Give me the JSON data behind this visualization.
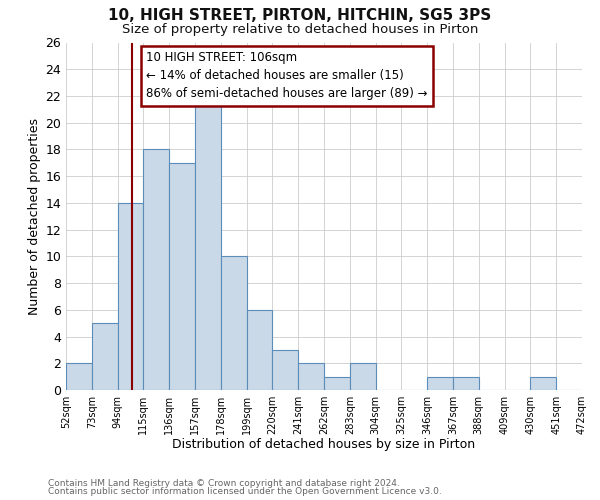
{
  "title": "10, HIGH STREET, PIRTON, HITCHIN, SG5 3PS",
  "subtitle": "Size of property relative to detached houses in Pirton",
  "xlabel": "Distribution of detached houses by size in Pirton",
  "ylabel": "Number of detached properties",
  "bar_edges": [
    52,
    73,
    94,
    115,
    136,
    157,
    178,
    199,
    220,
    241,
    262,
    283,
    304,
    325,
    346,
    367,
    388,
    409,
    430,
    451,
    472
  ],
  "bar_heights": [
    2,
    5,
    14,
    18,
    17,
    22,
    10,
    6,
    3,
    2,
    1,
    2,
    0,
    0,
    1,
    1,
    0,
    0,
    1,
    0
  ],
  "bar_color": "#c9d9e8",
  "bar_edge_color": "#5b8db8",
  "ylim": [
    0,
    26
  ],
  "yticks": [
    0,
    2,
    4,
    6,
    8,
    10,
    12,
    14,
    16,
    18,
    20,
    22,
    24,
    26
  ],
  "property_value": 106,
  "property_line_color": "#8b0000",
  "annotation_box_color": "#8b0000",
  "annotation_line1": "10 HIGH STREET: 106sqm",
  "annotation_line2": "← 14% of detached houses are smaller (15)",
  "annotation_line3": "86% of semi-detached houses are larger (89) →",
  "footer1": "Contains HM Land Registry data © Crown copyright and database right 2024.",
  "footer2": "Contains public sector information licensed under the Open Government Licence v3.0.",
  "background_color": "#ffffff",
  "grid_color": "#cccccc"
}
